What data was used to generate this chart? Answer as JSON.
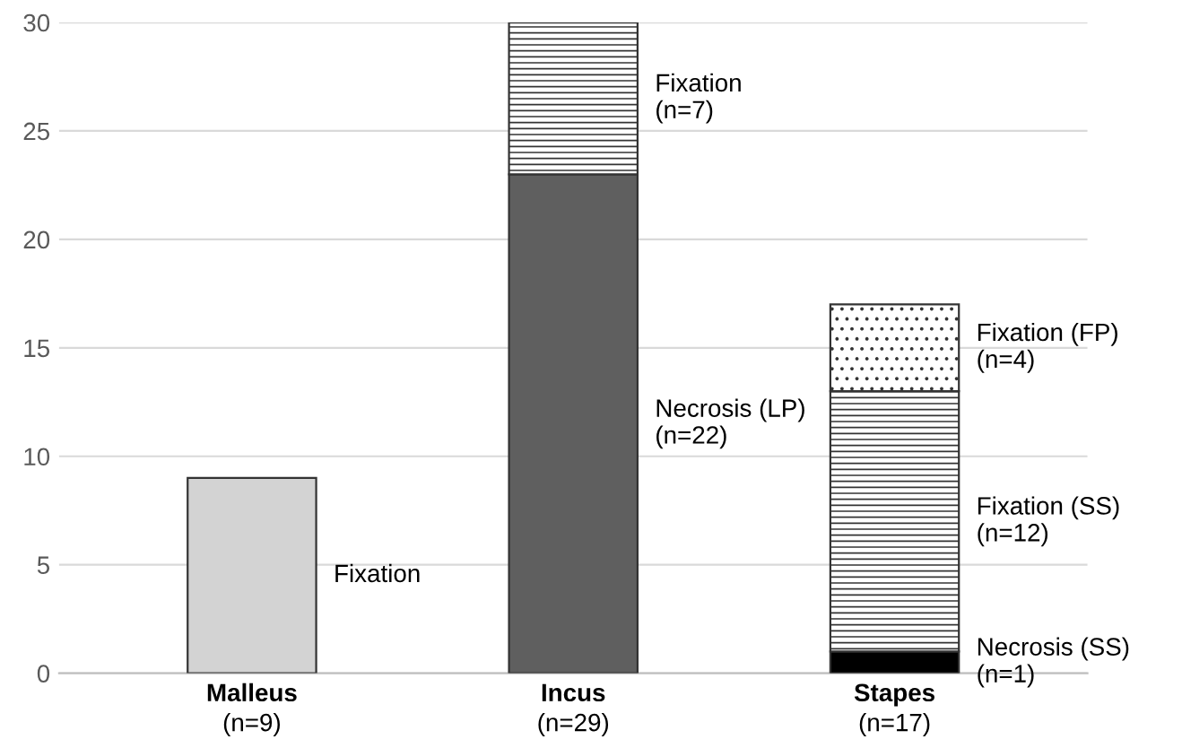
{
  "chart_data": {
    "type": "bar",
    "stacked": true,
    "categories": [
      "Malleus\n(n=9)",
      "Incus\n(n=29)",
      "Stapes\n(n=17)"
    ],
    "series": [
      {
        "name": "Fixation",
        "color": "#d3d3d3",
        "values": [
          9,
          null,
          null
        ]
      },
      {
        "name": "Necrosis (LP)\n(n=22)",
        "color": "#5f5f5f",
        "values": [
          null,
          23,
          null
        ]
      },
      {
        "name": "Fixation\n(n=7)",
        "color": "#333333",
        "values": [
          null,
          7,
          null
        ]
      },
      {
        "name": "Necrosis (SS)\n(n=1)",
        "color": "#000000",
        "values": [
          null,
          null,
          1
        ]
      },
      {
        "name": "Fixation (SS)\n(n=12)",
        "color": "#333333",
        "values": [
          null,
          null,
          12
        ]
      },
      {
        "name": "Fixation (FP)\n(n=4)",
        "color": "#333333",
        "values": [
          null,
          null,
          4
        ]
      }
    ],
    "ylim": [
      0,
      30
    ],
    "yticks": [
      0,
      5,
      10,
      15,
      20,
      25,
      30
    ],
    "grid": "y"
  }
}
